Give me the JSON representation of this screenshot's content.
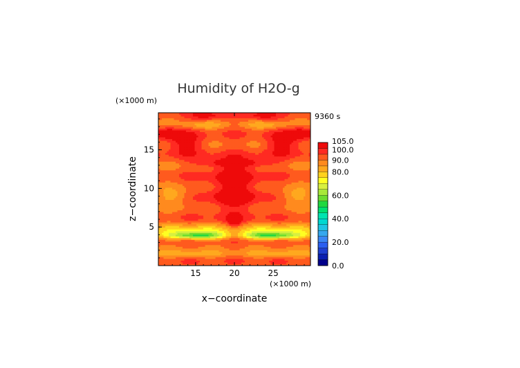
{
  "chart_data": {
    "type": "heatmap",
    "title": "Humidity of H2O-g",
    "time_label": "9360 s",
    "xlabel": "x−coordinate",
    "ylabel": "z−coordinate",
    "x_unit": "(×1000 m)",
    "y_unit": "(×1000 m)",
    "xlim": [
      10.2,
      29.8
    ],
    "ylim": [
      0,
      19.8
    ],
    "x_ticks": [
      15,
      20,
      25
    ],
    "y_ticks": [
      5,
      10,
      15
    ],
    "x_tick_labels": [
      "15",
      "20",
      "25"
    ],
    "y_tick_labels": [
      "5",
      "10",
      "15"
    ],
    "colorbar": {
      "labels": [
        "0.0",
        "20.0",
        "40.0",
        "60.0",
        "80.0",
        "90.0",
        "100.0",
        "105.0"
      ],
      "label_values": [
        0,
        20,
        40,
        60,
        80,
        90,
        100,
        105
      ],
      "levels": [
        0,
        5,
        10,
        15,
        20,
        25,
        30,
        35,
        40,
        45,
        50,
        55,
        60,
        65,
        70,
        75,
        80,
        85,
        90,
        95,
        100,
        105
      ],
      "colors": [
        "#00008b",
        "#0a1fb0",
        "#1e3fd0",
        "#2a5ef0",
        "#3a86f5",
        "#35a8ee",
        "#1ec4e4",
        "#00d8d0",
        "#00e4b0",
        "#00e070",
        "#20d840",
        "#6cdc30",
        "#a8e83a",
        "#d8f040",
        "#ffff22",
        "#ffd21e",
        "#ffa81e",
        "#ff8a1e",
        "#ff5a1e",
        "#ff2a22",
        "#ee0a0a",
        "#ffc0cb"
      ]
    }
  }
}
